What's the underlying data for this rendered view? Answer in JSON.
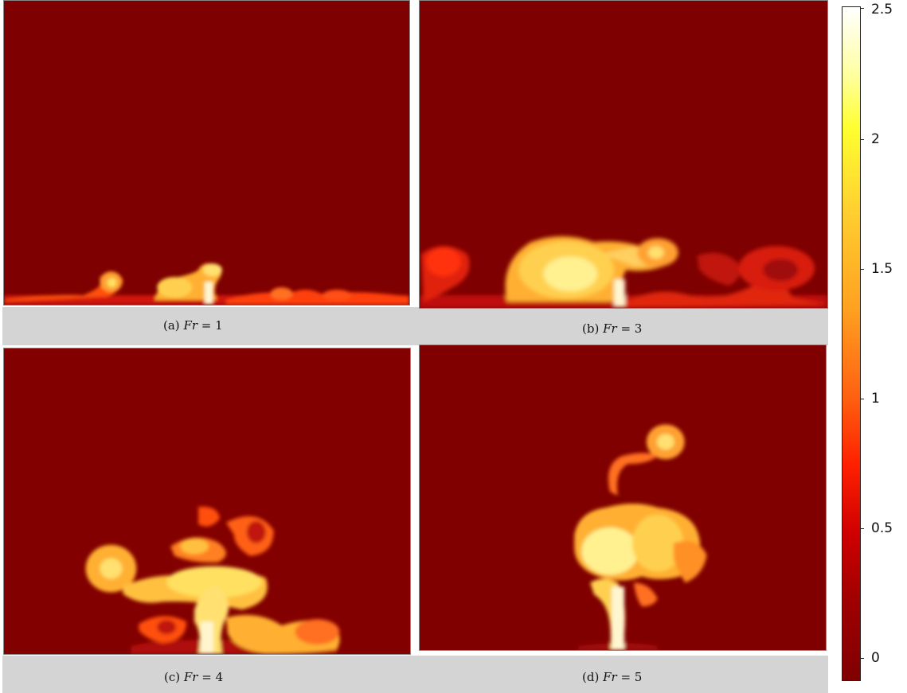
{
  "panels": [
    {
      "label": "(a)",
      "expr": "Fr",
      "eq": " = ",
      "value": "1"
    },
    {
      "label": "(b)",
      "expr": "Fr",
      "eq": " = ",
      "value": "3"
    },
    {
      "label": "(c)",
      "expr": "Fr",
      "eq": " = ",
      "value": "4"
    },
    {
      "label": "(d)",
      "expr": "Fr",
      "eq": " = ",
      "value": "5"
    }
  ],
  "colorbar": {
    "ticks": [
      "2.5",
      "2",
      "1.5",
      "1",
      "0.5",
      "0"
    ],
    "range": [
      -0.1,
      2.5
    ],
    "colors": {
      "low": "#800000",
      "mid": "#ff2000",
      "high": "#ffffff"
    }
  }
}
